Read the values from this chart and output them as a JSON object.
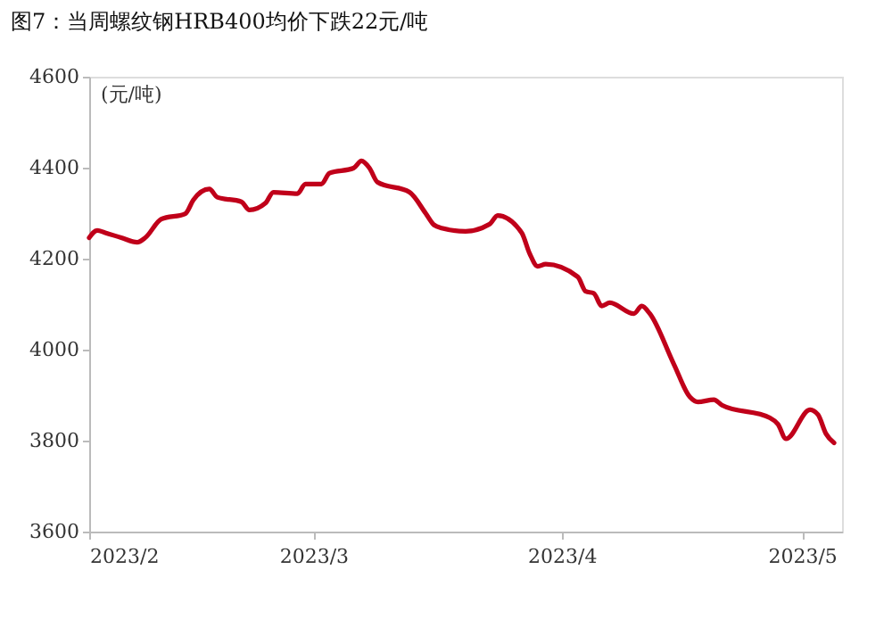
{
  "chart_data": {
    "type": "line",
    "title": "图7：当周螺纹钢HRB400均价下跌22元/吨",
    "ylabel": "(元/吨)",
    "x": [
      "2023-02-01",
      "2023-02-02",
      "2023-02-03",
      "2023-02-05",
      "2023-02-07",
      "2023-02-08",
      "2023-02-10",
      "2023-02-13",
      "2023-02-14",
      "2023-02-16",
      "2023-02-17",
      "2023-02-20",
      "2023-02-21",
      "2023-02-23",
      "2023-02-24",
      "2023-02-27",
      "2023-02-28",
      "2023-03-02",
      "2023-03-03",
      "2023-03-06",
      "2023-03-07",
      "2023-03-08",
      "2023-03-09",
      "2023-03-13",
      "2023-03-15",
      "2023-03-16",
      "2023-03-17",
      "2023-03-20",
      "2023-03-23",
      "2023-03-24",
      "2023-03-27",
      "2023-03-28",
      "2023-03-29",
      "2023-03-30",
      "2023-04-03",
      "2023-04-04",
      "2023-04-05",
      "2023-04-06",
      "2023-04-07",
      "2023-04-10",
      "2023-04-11",
      "2023-04-12",
      "2023-04-15",
      "2023-04-17",
      "2023-04-18",
      "2023-04-20",
      "2023-04-21",
      "2023-04-27",
      "2023-04-28",
      "2023-04-29",
      "2023-05-02",
      "2023-05-03",
      "2023-05-04",
      "2023-05-05"
    ],
    "series": [
      {
        "color": "#c0001a",
        "values": [
          4246,
          4262,
          4257,
          4246,
          4236,
          4246,
          4287,
          4299,
          4329,
          4353,
          4335,
          4325,
          4307,
          4322,
          4346,
          4343,
          4364,
          4364,
          4388,
          4399,
          4415,
          4399,
          4368,
          4346,
          4300,
          4275,
          4267,
          4260,
          4276,
          4295,
          4257,
          4211,
          4183,
          4188,
          4160,
          4128,
          4124,
          4096,
          4103,
          4079,
          4096,
          4079,
          3968,
          3896,
          3885,
          3890,
          3878,
          3850,
          3836,
          3804,
          3868,
          3857,
          3815,
          3795
        ]
      }
    ],
    "xlim": [
      "2023-02-01",
      "2023-05-06"
    ],
    "xticks": [
      {
        "value": "2023-02-01",
        "label": "2023/2"
      },
      {
        "value": "2023-03-01",
        "label": "2023/3"
      },
      {
        "value": "2023-04-01",
        "label": "2023/4"
      },
      {
        "value": "2023-05-01",
        "label": "2023/5"
      }
    ],
    "ylim": [
      3600,
      4600
    ],
    "yticks": [
      3600,
      3800,
      4000,
      4200,
      4400,
      4600
    ],
    "grid": false,
    "line_style": "solid"
  }
}
